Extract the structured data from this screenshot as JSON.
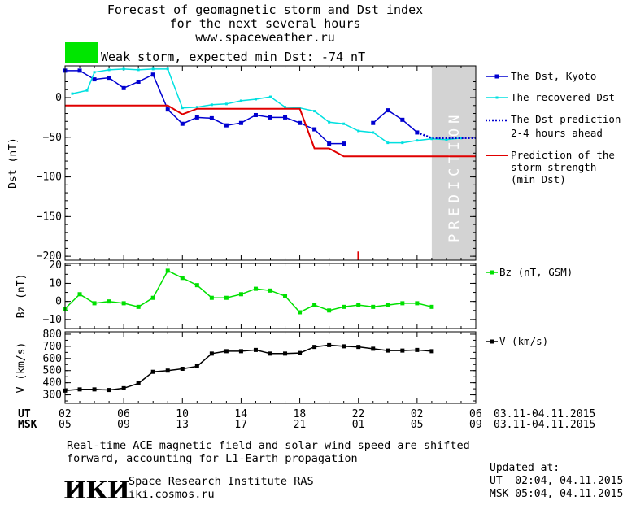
{
  "header": {
    "title_line1": "Forecast of geomagnetic storm and Dst index",
    "title_line2": "for the next several hours",
    "title_line3": "www.spaceweather.ru"
  },
  "storm": {
    "label": "Weak storm, expected min Dst: -74 nT",
    "color": "#00e600"
  },
  "prediction_label": "PREDICTION",
  "time_axis": {
    "ut_label": "UT",
    "msk_label": "MSK",
    "ut_ticks": [
      "02",
      "06",
      "10",
      "14",
      "18",
      "22",
      "02",
      "06"
    ],
    "msk_ticks": [
      "05",
      "09",
      "13",
      "17",
      "21",
      "01",
      "05",
      "09"
    ],
    "ut_range": "03.11-04.11.2015",
    "msk_range": "03.11-04.11.2015"
  },
  "footer": {
    "note_line1": "Real-time ACE magnetic field and solar wind speed are shifted",
    "note_line2": "forward, accounting for L1-Earth propagation",
    "institute": "Space Research Institute RAS",
    "site": "iki.cosmos.ru",
    "logo_text": "ИКИ",
    "updated_label": "Updated at:",
    "updated_ut": "UT  02:04, 04.11.2015",
    "updated_msk": "MSK 05:04, 04.11.2015"
  },
  "colors": {
    "dst_kyoto": "#0000d0",
    "dst_recovered": "#00e0e0",
    "dst_prediction": "#0000d0",
    "storm_strength": "#e00000",
    "bz": "#00e000",
    "v": "#000000",
    "prediction_shade": "#d3d3d3"
  },
  "chart_data": [
    {
      "type": "line",
      "ylabel": "Dst (nT)",
      "x_unit": "hours from 02 UT 03.11.2015",
      "xlim": [
        0,
        28
      ],
      "ylim": [
        -205,
        40
      ],
      "yticks": [
        0,
        -50,
        -100,
        -150,
        -200
      ],
      "prediction_region": [
        25,
        28
      ],
      "series": [
        {
          "name": "The Dst, Kyoto",
          "segments": [
            [
              [
                0,
                34
              ],
              [
                1,
                34
              ],
              [
                2,
                23
              ],
              [
                3,
                25
              ],
              [
                4,
                12
              ],
              [
                5,
                20
              ],
              [
                6,
                29
              ],
              [
                7,
                -15
              ],
              [
                8,
                -33
              ],
              [
                9,
                -25
              ],
              [
                10,
                -26
              ],
              [
                11,
                -35
              ],
              [
                12,
                -32
              ],
              [
                13,
                -22
              ],
              [
                14,
                -25
              ],
              [
                15,
                -25
              ],
              [
                16,
                -32
              ],
              [
                17,
                -40
              ],
              [
                18,
                -58
              ],
              [
                19,
                -58
              ]
            ],
            [
              [
                21,
                -32
              ],
              [
                22,
                -16
              ],
              [
                23,
                -28
              ],
              [
                24,
                -44
              ]
            ]
          ]
        },
        {
          "name": "The recovered Dst",
          "points": [
            [
              0.5,
              5
            ],
            [
              1.5,
              9
            ],
            [
              2,
              32
            ],
            [
              3,
              35
            ],
            [
              4,
              36
            ],
            [
              5,
              35
            ],
            [
              6,
              36
            ],
            [
              7,
              36
            ],
            [
              8,
              -13
            ],
            [
              9,
              -12
            ],
            [
              10,
              -9
            ],
            [
              11,
              -8
            ],
            [
              12,
              -4
            ],
            [
              13,
              -2
            ],
            [
              14,
              1
            ],
            [
              15,
              -12
            ],
            [
              16,
              -13
            ],
            [
              17,
              -17
            ],
            [
              18,
              -31
            ],
            [
              19,
              -33
            ],
            [
              20,
              -42
            ],
            [
              21,
              -44
            ],
            [
              22,
              -57
            ],
            [
              23,
              -57
            ],
            [
              24,
              -54
            ],
            [
              25,
              -52
            ],
            [
              26,
              -53
            ],
            [
              27,
              -51
            ]
          ]
        },
        {
          "name": "The Dst prediction 2-4 hours ahead",
          "points": [
            [
              24,
              -44
            ],
            [
              25,
              -51
            ],
            [
              26.5,
              -51
            ],
            [
              28,
              -51
            ]
          ]
        },
        {
          "name": "Prediction of the storm strength (min Dst)",
          "points": [
            [
              0,
              -10
            ],
            [
              7,
              -10
            ],
            [
              8,
              -21
            ],
            [
              9,
              -14
            ],
            [
              16,
              -14
            ],
            [
              17,
              -64
            ],
            [
              18,
              -64
            ],
            [
              19,
              -74
            ],
            [
              28,
              -74
            ]
          ]
        }
      ],
      "annotations": [
        {
          "type": "marker",
          "x": 20,
          "y": [
            -194,
            -205
          ]
        }
      ]
    },
    {
      "type": "line",
      "ylabel": "Bz (nT)",
      "xlim": [
        0,
        28
      ],
      "ylim": [
        -15,
        21
      ],
      "yticks": [
        20,
        10,
        0,
        -10
      ],
      "series": [
        {
          "name": "Bz (nT, GSM)",
          "points": [
            [
              0,
              -4
            ],
            [
              1,
              4
            ],
            [
              2,
              -1
            ],
            [
              3,
              0
            ],
            [
              4,
              -1
            ],
            [
              5,
              -3
            ],
            [
              6,
              2
            ],
            [
              7,
              17
            ],
            [
              8,
              13
            ],
            [
              9,
              9
            ],
            [
              10,
              2
            ],
            [
              11,
              2
            ],
            [
              12,
              4
            ],
            [
              13,
              7
            ],
            [
              14,
              6
            ],
            [
              15,
              3
            ],
            [
              16,
              -6
            ],
            [
              17,
              -2
            ],
            [
              18,
              -5
            ],
            [
              19,
              -3
            ],
            [
              20,
              -2
            ],
            [
              21,
              -3
            ],
            [
              22,
              -2
            ],
            [
              23,
              -1
            ],
            [
              24,
              -1
            ],
            [
              25,
              -3
            ]
          ]
        }
      ]
    },
    {
      "type": "line",
      "ylabel": "V (km/s)",
      "xlim": [
        0,
        28
      ],
      "ylim": [
        230,
        820
      ],
      "yticks": [
        800,
        700,
        600,
        500,
        400,
        300
      ],
      "series": [
        {
          "name": "V (km/s)",
          "points": [
            [
              0,
              335
            ],
            [
              1,
              345
            ],
            [
              2,
              345
            ],
            [
              3,
              340
            ],
            [
              4,
              355
            ],
            [
              5,
              395
            ],
            [
              6,
              490
            ],
            [
              7,
              500
            ],
            [
              8,
              515
            ],
            [
              9,
              535
            ],
            [
              10,
              640
            ],
            [
              11,
              660
            ],
            [
              12,
              660
            ],
            [
              13,
              670
            ],
            [
              14,
              640
            ],
            [
              15,
              640
            ],
            [
              16,
              645
            ],
            [
              17,
              695
            ],
            [
              18,
              710
            ],
            [
              19,
              700
            ],
            [
              20,
              695
            ],
            [
              21,
              680
            ],
            [
              22,
              665
            ],
            [
              23,
              665
            ],
            [
              24,
              670
            ],
            [
              25,
              660
            ]
          ]
        }
      ]
    }
  ],
  "legend": {
    "dst_kyoto": "The Dst, Kyoto",
    "dst_recovered": "The recovered Dst",
    "dst_pred_line1": "The Dst prediction",
    "dst_pred_line2": "2-4 hours ahead",
    "strength_line1": "Prediction of the",
    "strength_line2": "storm strength",
    "strength_line3": "(min Dst)",
    "bz": "Bz (nT, GSM)",
    "v": "V (km/s)"
  }
}
